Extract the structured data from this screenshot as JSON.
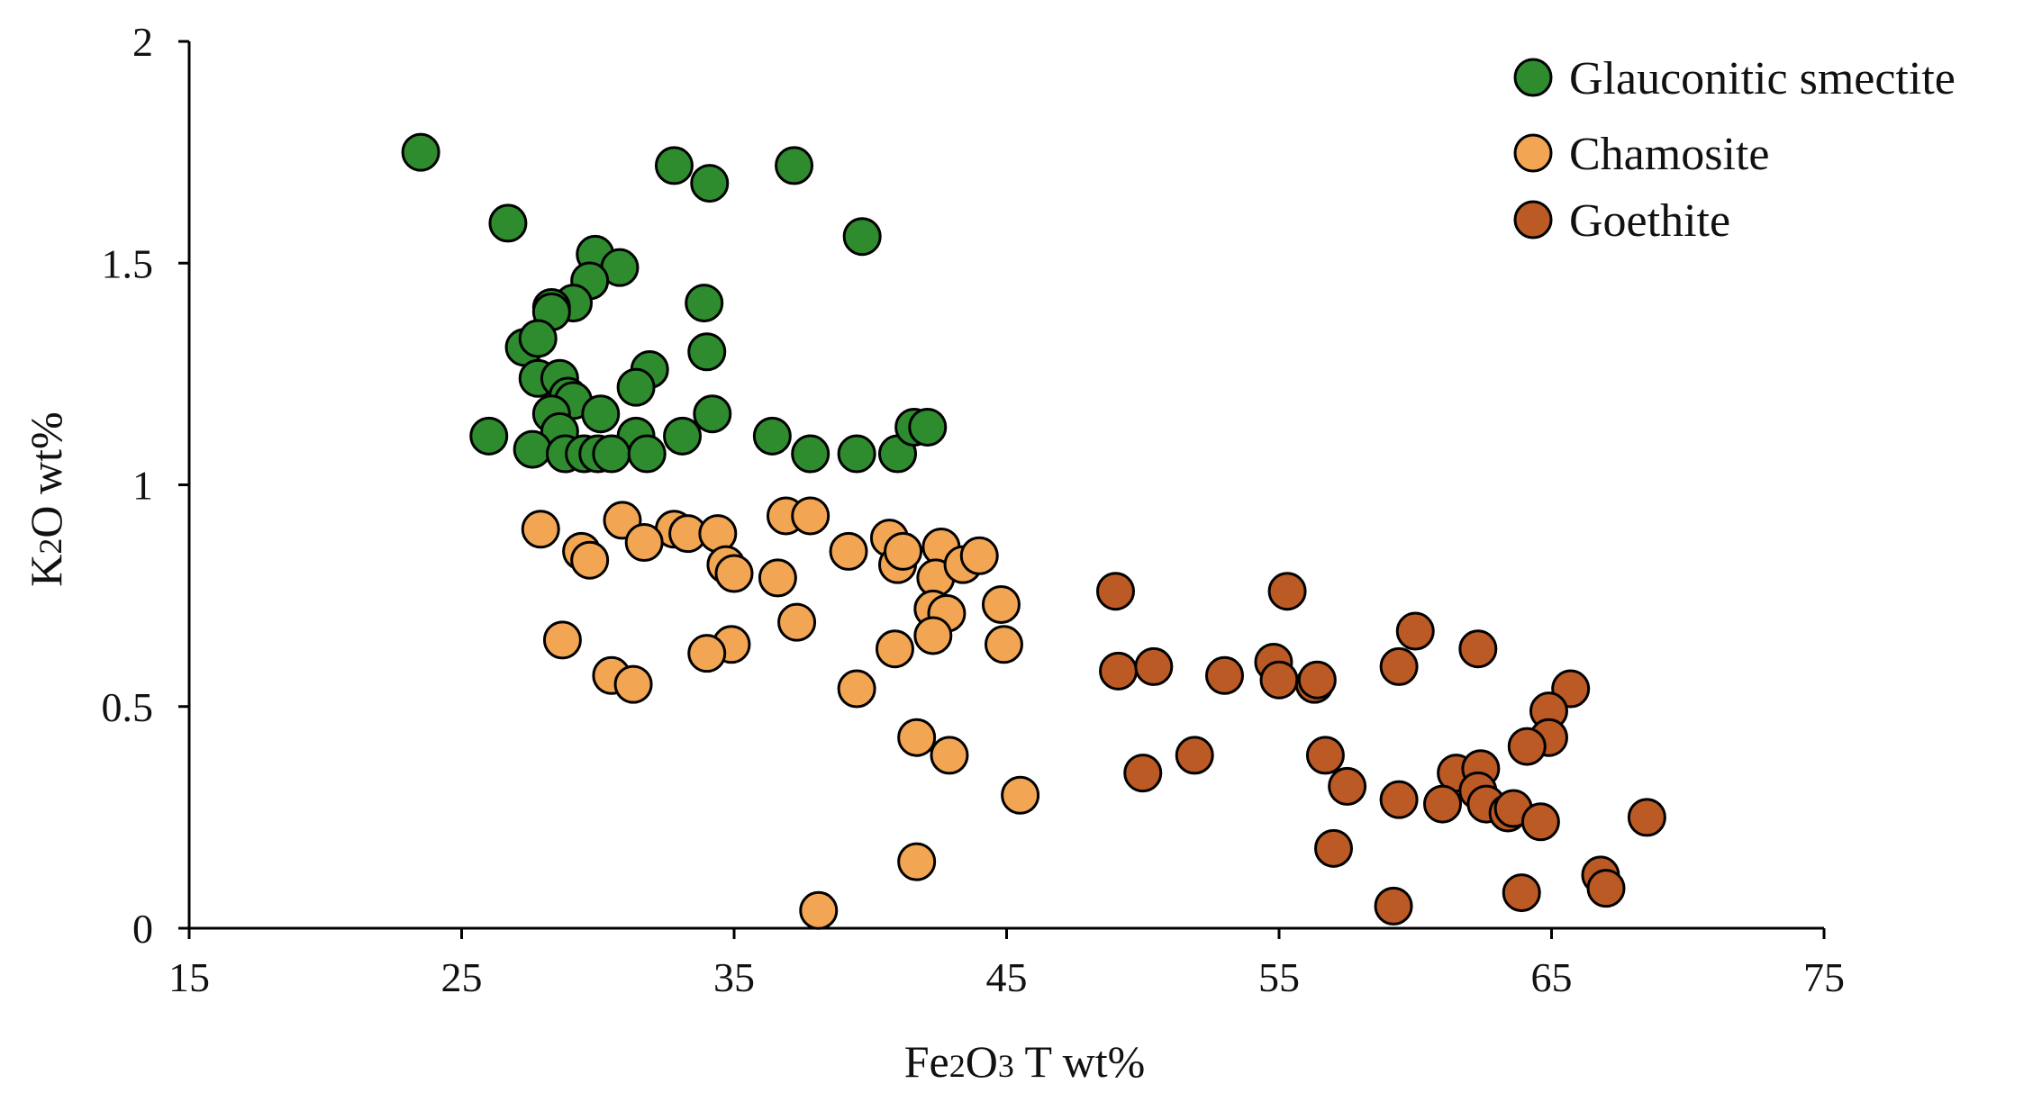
{
  "chart_data": {
    "type": "scatter",
    "title": "",
    "xlabel": {
      "parts": [
        {
          "text": "Fe",
          "sub": false
        },
        {
          "text": "2",
          "sub": true
        },
        {
          "text": "O",
          "sub": false
        },
        {
          "text": "3",
          "sub": true
        },
        {
          "text": " T wt%",
          "sub": false
        }
      ]
    },
    "ylabel": {
      "parts": [
        {
          "text": "K",
          "sub": false
        },
        {
          "text": "2",
          "sub": true
        },
        {
          "text": "O wt%",
          "sub": false
        }
      ]
    },
    "xlim": [
      15,
      75
    ],
    "ylim": [
      0,
      2
    ],
    "xticks": [
      15,
      25,
      35,
      45,
      55,
      65,
      75
    ],
    "xtick_labels": [
      "15",
      "25",
      "35",
      "45",
      "55",
      "65",
      "75"
    ],
    "yticks": [
      0,
      0.5,
      1,
      1.5,
      2
    ],
    "ytick_labels": [
      "0",
      "0.5",
      "1",
      "1.5",
      "2"
    ],
    "grid": false,
    "legend_position": "top-right",
    "series": [
      {
        "name": "Glauconitic smectite",
        "color": "#2e8b2e",
        "points": [
          [
            23.5,
            1.75
          ],
          [
            26.7,
            1.59
          ],
          [
            32.8,
            1.72
          ],
          [
            34.1,
            1.68
          ],
          [
            37.2,
            1.72
          ],
          [
            39.7,
            1.56
          ],
          [
            29.9,
            1.52
          ],
          [
            30.8,
            1.49
          ],
          [
            29.7,
            1.46
          ],
          [
            29.1,
            1.41
          ],
          [
            28.3,
            1.4
          ],
          [
            28.3,
            1.39
          ],
          [
            33.9,
            1.41
          ],
          [
            27.3,
            1.31
          ],
          [
            27.8,
            1.33
          ],
          [
            34,
            1.3
          ],
          [
            27.8,
            1.24
          ],
          [
            28.6,
            1.24
          ],
          [
            31.9,
            1.26
          ],
          [
            31.4,
            1.22
          ],
          [
            28.9,
            1.2
          ],
          [
            29.1,
            1.19
          ],
          [
            28.3,
            1.16
          ],
          [
            30.1,
            1.16
          ],
          [
            34.2,
            1.16
          ],
          [
            26,
            1.11
          ],
          [
            28.6,
            1.12
          ],
          [
            31.4,
            1.11
          ],
          [
            33.1,
            1.11
          ],
          [
            36.4,
            1.11
          ],
          [
            27.6,
            1.08
          ],
          [
            28.8,
            1.07
          ],
          [
            29.5,
            1.07
          ],
          [
            30.0,
            1.07
          ],
          [
            30.5,
            1.07
          ],
          [
            31.8,
            1.07
          ],
          [
            37.8,
            1.07
          ],
          [
            39.5,
            1.07
          ],
          [
            41,
            1.07
          ],
          [
            41.6,
            1.13
          ],
          [
            42.1,
            1.13
          ]
        ]
      },
      {
        "name": "Chamosite",
        "color": "#f2a654",
        "points": [
          [
            27.9,
            0.9
          ],
          [
            30.9,
            0.92
          ],
          [
            32.8,
            0.9
          ],
          [
            33.3,
            0.89
          ],
          [
            34.4,
            0.89
          ],
          [
            36.9,
            0.93
          ],
          [
            37.8,
            0.93
          ],
          [
            29.4,
            0.85
          ],
          [
            29.7,
            0.83
          ],
          [
            31.7,
            0.87
          ],
          [
            34.7,
            0.82
          ],
          [
            35.0,
            0.8
          ],
          [
            36.6,
            0.79
          ],
          [
            39.2,
            0.85
          ],
          [
            40.7,
            0.88
          ],
          [
            41.0,
            0.82
          ],
          [
            41.2,
            0.85
          ],
          [
            42.6,
            0.86
          ],
          [
            42.4,
            0.79
          ],
          [
            43.4,
            0.82
          ],
          [
            44.0,
            0.84
          ],
          [
            42.3,
            0.72
          ],
          [
            42.8,
            0.71
          ],
          [
            37.3,
            0.69
          ],
          [
            44.8,
            0.73
          ],
          [
            28.7,
            0.65
          ],
          [
            34.9,
            0.64
          ],
          [
            34.0,
            0.62
          ],
          [
            40.9,
            0.63
          ],
          [
            42.3,
            0.66
          ],
          [
            44.9,
            0.64
          ],
          [
            30.5,
            0.57
          ],
          [
            31.3,
            0.55
          ],
          [
            39.5,
            0.54
          ],
          [
            41.7,
            0.43
          ],
          [
            42.9,
            0.39
          ],
          [
            45.5,
            0.3
          ],
          [
            41.7,
            0.15
          ],
          [
            38.1,
            0.04
          ]
        ]
      },
      {
        "name": "Goethite",
        "color": "#bb5a25",
        "points": [
          [
            49.0,
            0.76
          ],
          [
            55.3,
            0.76
          ],
          [
            49.1,
            0.58
          ],
          [
            50.4,
            0.59
          ],
          [
            53.0,
            0.57
          ],
          [
            54.8,
            0.6
          ],
          [
            55.0,
            0.56
          ],
          [
            56.3,
            0.55
          ],
          [
            56.4,
            0.56
          ],
          [
            59.4,
            0.59
          ],
          [
            60.0,
            0.67
          ],
          [
            62.3,
            0.63
          ],
          [
            65.7,
            0.54
          ],
          [
            64.9,
            0.49
          ],
          [
            64.9,
            0.43
          ],
          [
            64.1,
            0.41
          ],
          [
            51.9,
            0.39
          ],
          [
            56.7,
            0.39
          ],
          [
            57.5,
            0.32
          ],
          [
            50.0,
            0.35
          ],
          [
            61.5,
            0.35
          ],
          [
            62.4,
            0.36
          ],
          [
            62.3,
            0.31
          ],
          [
            62.6,
            0.28
          ],
          [
            61.0,
            0.28
          ],
          [
            59.4,
            0.29
          ],
          [
            63.4,
            0.26
          ],
          [
            63.6,
            0.27
          ],
          [
            64.6,
            0.24
          ],
          [
            68.5,
            0.25
          ],
          [
            57.0,
            0.18
          ],
          [
            66.8,
            0.12
          ],
          [
            67.0,
            0.09
          ],
          [
            63.9,
            0.08
          ],
          [
            59.2,
            0.05
          ]
        ]
      }
    ]
  }
}
